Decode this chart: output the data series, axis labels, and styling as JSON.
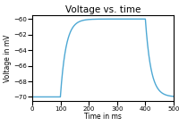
{
  "title": "Voltage vs. time",
  "xlabel": "Time in ms",
  "ylabel": "Voltage in mV",
  "xlim": [
    0,
    500
  ],
  "ylim": [
    -70.5,
    -59.5
  ],
  "yticks": [
    -70,
    -68,
    -66,
    -64,
    -62,
    -60
  ],
  "xticks": [
    0,
    100,
    200,
    300,
    400,
    500
  ],
  "line_color": "#4da8d4",
  "line_width": 1.0,
  "tau": 20,
  "v_rest": -70,
  "v_target": -60,
  "t_start": 100,
  "t_end": 400,
  "t_max": 500,
  "dt": 0.5,
  "figsize": [
    2.0,
    1.41
  ],
  "dpi": 100,
  "title_fontsize": 7.5,
  "label_fontsize": 5.5,
  "tick_fontsize": 5
}
